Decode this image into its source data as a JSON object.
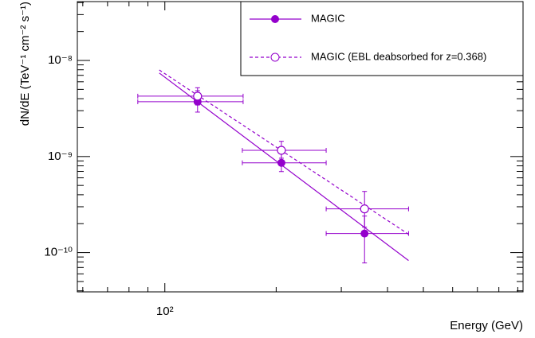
{
  "chart_data": {
    "type": "scatter",
    "xlabel": "Energy (GeV)",
    "ylabel": "dN/dE (TeV⁻¹ cm⁻² s⁻¹)",
    "xlog": true,
    "ylog": true,
    "xlim": [
      58,
      930
    ],
    "ylim": [
      3.9e-11,
      4.1e-08
    ],
    "xticks": [
      {
        "value": 100,
        "label": "10²"
      }
    ],
    "yticks": [
      {
        "value": 1e-10,
        "label": "10⁻¹⁰"
      },
      {
        "value": 1e-09,
        "label": "10⁻⁹"
      },
      {
        "value": 1e-08,
        "label": "10⁻⁸"
      }
    ],
    "xminor": [
      60,
      70,
      80,
      90,
      200,
      300,
      400,
      500,
      600,
      700,
      800,
      900
    ],
    "yminor": [
      4e-11,
      5e-11,
      6e-11,
      7e-11,
      8e-11,
      9e-11,
      2e-10,
      3e-10,
      4e-10,
      5e-10,
      6e-10,
      7e-10,
      8e-10,
      9e-10,
      2e-09,
      3e-09,
      4e-09,
      5e-09,
      6e-09,
      7e-09,
      8e-09,
      9e-09,
      2e-08,
      3e-08,
      4e-08
    ],
    "legend": "upper right",
    "series": [
      {
        "name": "MAGIC",
        "color": "#9400cc",
        "marker": "filled",
        "line": "solid",
        "x": [
          122.6,
          206.6,
          346.7
        ],
        "values": [
          3.72e-09,
          8.6e-10,
          1.58e-10
        ],
        "x_lo": [
          84.5,
          162,
          273
        ],
        "x_hi": [
          162.8,
          273,
          456
        ],
        "y_lo": [
          2.9e-09,
          6.97e-10,
          7.8e-11
        ],
        "y_hi": [
          4.85e-09,
          1.16e-09,
          2.4e-10
        ],
        "fit": {
          "x": [
            96.6,
            456
          ],
          "y": [
            7.4e-09,
            8.26e-11
          ]
        }
      },
      {
        "name": "MAGIC (EBL deabsorbed for z=0.368)",
        "color": "#9400cc",
        "marker": "open",
        "line": "dashed",
        "x": [
          122.6,
          206.6,
          346.7
        ],
        "values": [
          4.25e-09,
          1.16e-09,
          2.85e-10
        ],
        "x_lo": [
          84.5,
          162,
          273
        ],
        "x_hi": [
          162.8,
          273,
          456
        ],
        "y_lo": [
          3.44e-09,
          9.6e-10,
          1.84e-10
        ],
        "y_hi": [
          5.2e-09,
          1.44e-09,
          4.33e-10
        ],
        "fit": {
          "x": [
            96.6,
            456
          ],
          "y": [
            7.96e-09,
            1.55e-10
          ]
        }
      }
    ]
  }
}
